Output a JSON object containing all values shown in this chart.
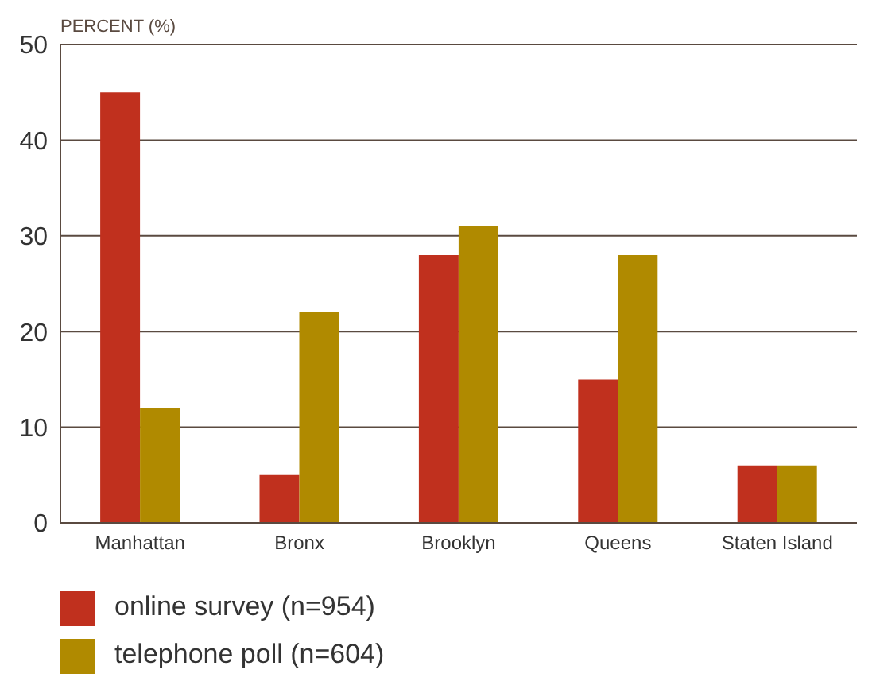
{
  "chart_data": {
    "type": "bar",
    "ylabel": "PERCENT (%)",
    "categories": [
      "Manhattan",
      "Bronx",
      "Brooklyn",
      "Queens",
      "Staten Island"
    ],
    "series": [
      {
        "name": "online survey (n=954)",
        "color": "#c0301e",
        "values": [
          45,
          5,
          28,
          15,
          6
        ]
      },
      {
        "name": "telephone poll (n=604)",
        "color": "#b08a00",
        "values": [
          12,
          22,
          31,
          28,
          6
        ]
      }
    ],
    "ylim": [
      0,
      50
    ],
    "yticks": [
      0,
      10,
      20,
      30,
      40,
      50
    ],
    "grid": "y",
    "legend": "bottom left"
  }
}
